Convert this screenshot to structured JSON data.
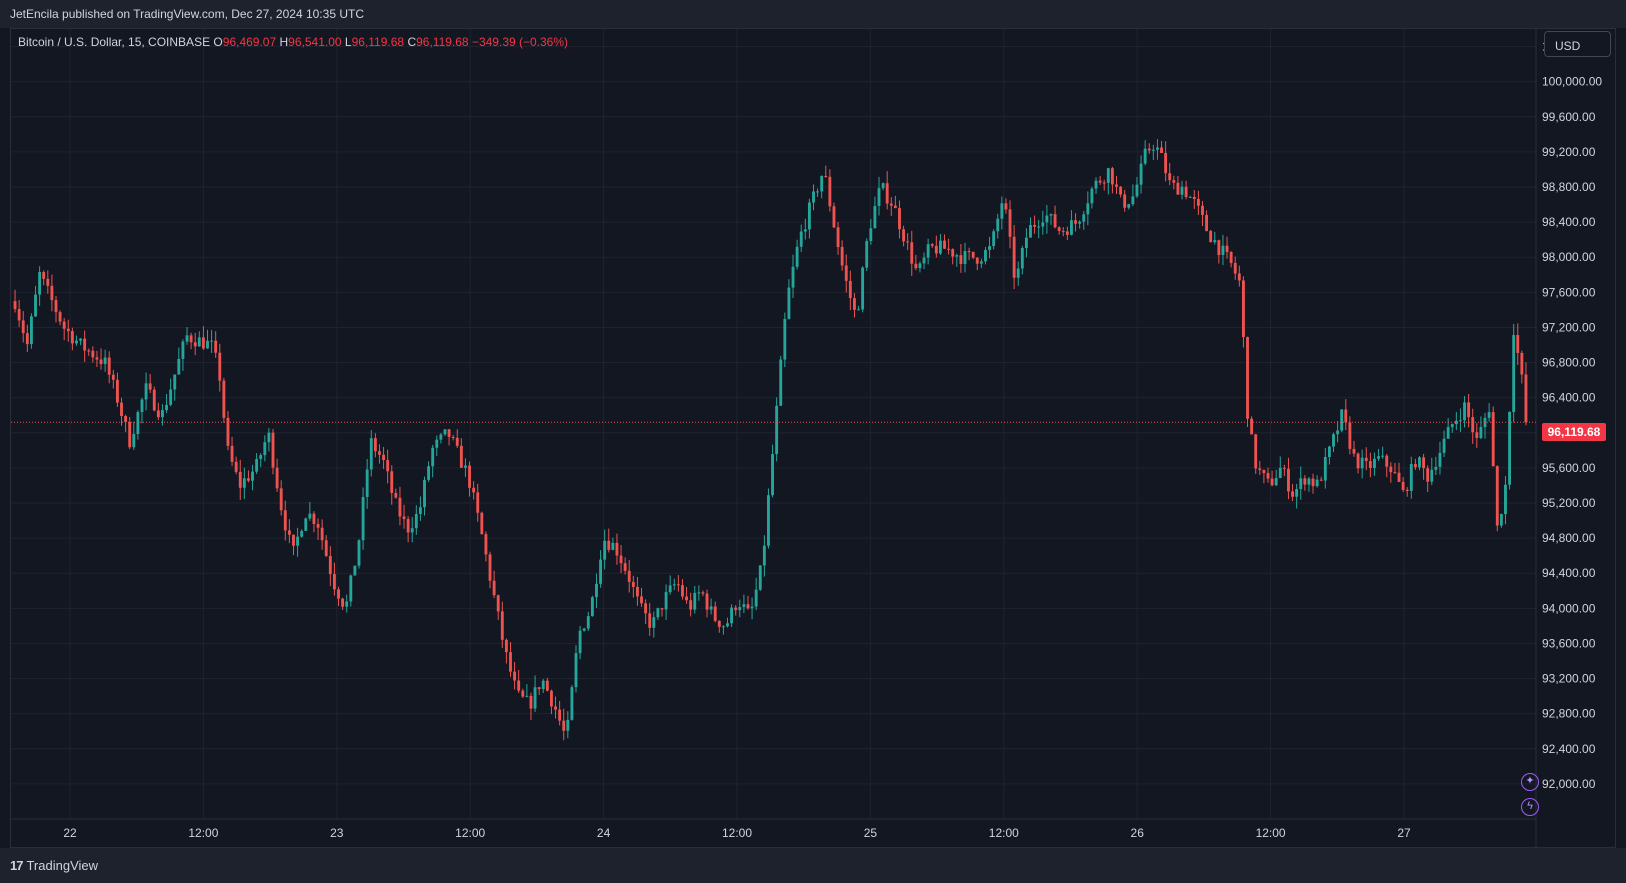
{
  "header": {
    "publisher_text": "JetEncila published on TradingView.com, Dec 27, 2024 10:35 UTC"
  },
  "legend": {
    "symbol": "Bitcoin / U.S. Dollar, 15, COINBASE",
    "open_label": "O",
    "open_value": "96,469.07",
    "high_label": "H",
    "high_value": "96,541.00",
    "low_label": "L",
    "low_value": "96,119.68",
    "close_label": "C",
    "close_value": "96,119.68",
    "change": "−349.39 (−0.36%)"
  },
  "currency_button": "USD",
  "last_price_tag": "96,119.68",
  "colors": {
    "up": "#26a69a",
    "down": "#ef5350",
    "background": "#131722",
    "grid": "#1f2330"
  },
  "icons": [
    "magic-wand-icon",
    "lightning-icon"
  ],
  "footer": {
    "logo_text": "TradingView",
    "logo_mark": "17"
  },
  "chart_data": {
    "type": "candlestick",
    "symbol": "Bitcoin / U.S. Dollar",
    "interval": "15",
    "exchange": "COINBASE",
    "currency": "USD",
    "ylim": [
      91600,
      100600
    ],
    "y_ticks": [
      "92,000.00",
      "92,400.00",
      "92,800.00",
      "93,200.00",
      "93,600.00",
      "94,000.00",
      "94,400.00",
      "94,800.00",
      "95,200.00",
      "95,600.00",
      "96,000.00",
      "96,400.00",
      "96,800.00",
      "97,200.00",
      "97,600.00",
      "98,000.00",
      "98,400.00",
      "98,800.00",
      "99,200.00",
      "99,600.00",
      "100,000.00",
      "100,400.00"
    ],
    "x_ticks": [
      "22",
      "12:00",
      "23",
      "12:00",
      "24",
      "12:00",
      "25",
      "12:00",
      "26",
      "12:00",
      "27"
    ],
    "last_price": 96119.68,
    "price_path": [
      [
        0,
        97500
      ],
      [
        1.5,
        97000
      ],
      [
        3,
        97800
      ],
      [
        6,
        97200
      ],
      [
        8,
        97000
      ],
      [
        11,
        96800
      ],
      [
        12.5,
        96400
      ],
      [
        14,
        95900
      ],
      [
        16,
        96500
      ],
      [
        18,
        96200
      ],
      [
        21,
        97100
      ],
      [
        24,
        97000
      ],
      [
        25,
        96700
      ],
      [
        26,
        95800
      ],
      [
        27.5,
        95400
      ],
      [
        29.5,
        95600
      ],
      [
        31,
        96000
      ],
      [
        32.5,
        95200
      ],
      [
        34,
        94600
      ],
      [
        35.5,
        95100
      ],
      [
        37,
        95000
      ],
      [
        39,
        94300
      ],
      [
        40.5,
        94000
      ],
      [
        42,
        94700
      ],
      [
        43.5,
        95900
      ],
      [
        45,
        95700
      ],
      [
        46.5,
        95200
      ],
      [
        48,
        94900
      ],
      [
        49.5,
        95100
      ],
      [
        51,
        95800
      ],
      [
        53,
        96000
      ],
      [
        54,
        95800
      ],
      [
        55.5,
        95500
      ],
      [
        57,
        94900
      ],
      [
        58.5,
        94200
      ],
      [
        60,
        93500
      ],
      [
        61.5,
        93000
      ],
      [
        63,
        92900
      ],
      [
        64.5,
        93200
      ],
      [
        66,
        92900
      ],
      [
        67.5,
        92500
      ],
      [
        69,
        93700
      ],
      [
        70.5,
        94000
      ],
      [
        72,
        94800
      ],
      [
        73.5,
        94700
      ],
      [
        75,
        94400
      ],
      [
        76.5,
        94000
      ],
      [
        78,
        93800
      ],
      [
        79.5,
        94100
      ],
      [
        81,
        94300
      ],
      [
        82.5,
        94000
      ],
      [
        84,
        94200
      ],
      [
        85.5,
        93900
      ],
      [
        87,
        93800
      ],
      [
        88.5,
        94100
      ],
      [
        90,
        93900
      ],
      [
        91.5,
        94500
      ],
      [
        93,
        96000
      ],
      [
        94.5,
        97500
      ],
      [
        96,
        98200
      ],
      [
        97.5,
        98600
      ],
      [
        99,
        99000
      ],
      [
        100,
        98500
      ],
      [
        101.5,
        97800
      ],
      [
        103,
        97300
      ],
      [
        104.5,
        98300
      ],
      [
        106,
        98800
      ],
      [
        107.5,
        98600
      ],
      [
        109,
        98200
      ],
      [
        110.5,
        97800
      ],
      [
        112,
        98100
      ],
      [
        114,
        98100
      ],
      [
        116,
        98000
      ],
      [
        118,
        98000
      ],
      [
        119.5,
        98100
      ],
      [
        121,
        98700
      ],
      [
        122.5,
        97700
      ],
      [
        124,
        98300
      ],
      [
        126,
        98500
      ],
      [
        128,
        98300
      ],
      [
        130,
        98400
      ],
      [
        132,
        98800
      ],
      [
        134,
        99000
      ],
      [
        135.5,
        98600
      ],
      [
        137,
        98700
      ],
      [
        138.5,
        99200
      ],
      [
        139.5,
        99300
      ],
      [
        140.5,
        99100
      ],
      [
        141.5,
        98800
      ],
      [
        143,
        98800
      ],
      [
        144.5,
        98600
      ],
      [
        146,
        98300
      ],
      [
        147.5,
        98100
      ],
      [
        149,
        97900
      ],
      [
        150,
        97700
      ],
      [
        151,
        96100
      ],
      [
        152,
        95600
      ],
      [
        153.5,
        95400
      ],
      [
        155,
        95600
      ],
      [
        156.5,
        95300
      ],
      [
        158,
        95500
      ],
      [
        159.5,
        95400
      ],
      [
        161,
        95800
      ],
      [
        162.5,
        96200
      ],
      [
        164,
        95700
      ],
      [
        165.5,
        95600
      ],
      [
        167,
        95700
      ],
      [
        168.5,
        95600
      ],
      [
        170,
        95300
      ],
      [
        171.5,
        95700
      ],
      [
        173,
        95500
      ],
      [
        174.5,
        95800
      ],
      [
        176,
        96100
      ],
      [
        177.5,
        96300
      ],
      [
        179,
        95900
      ],
      [
        180.5,
        96300
      ],
      [
        181.5,
        94900
      ],
      [
        182.5,
        95400
      ],
      [
        183.5,
        97200
      ],
      [
        184.5,
        96600
      ],
      [
        185,
        96120
      ]
    ]
  }
}
